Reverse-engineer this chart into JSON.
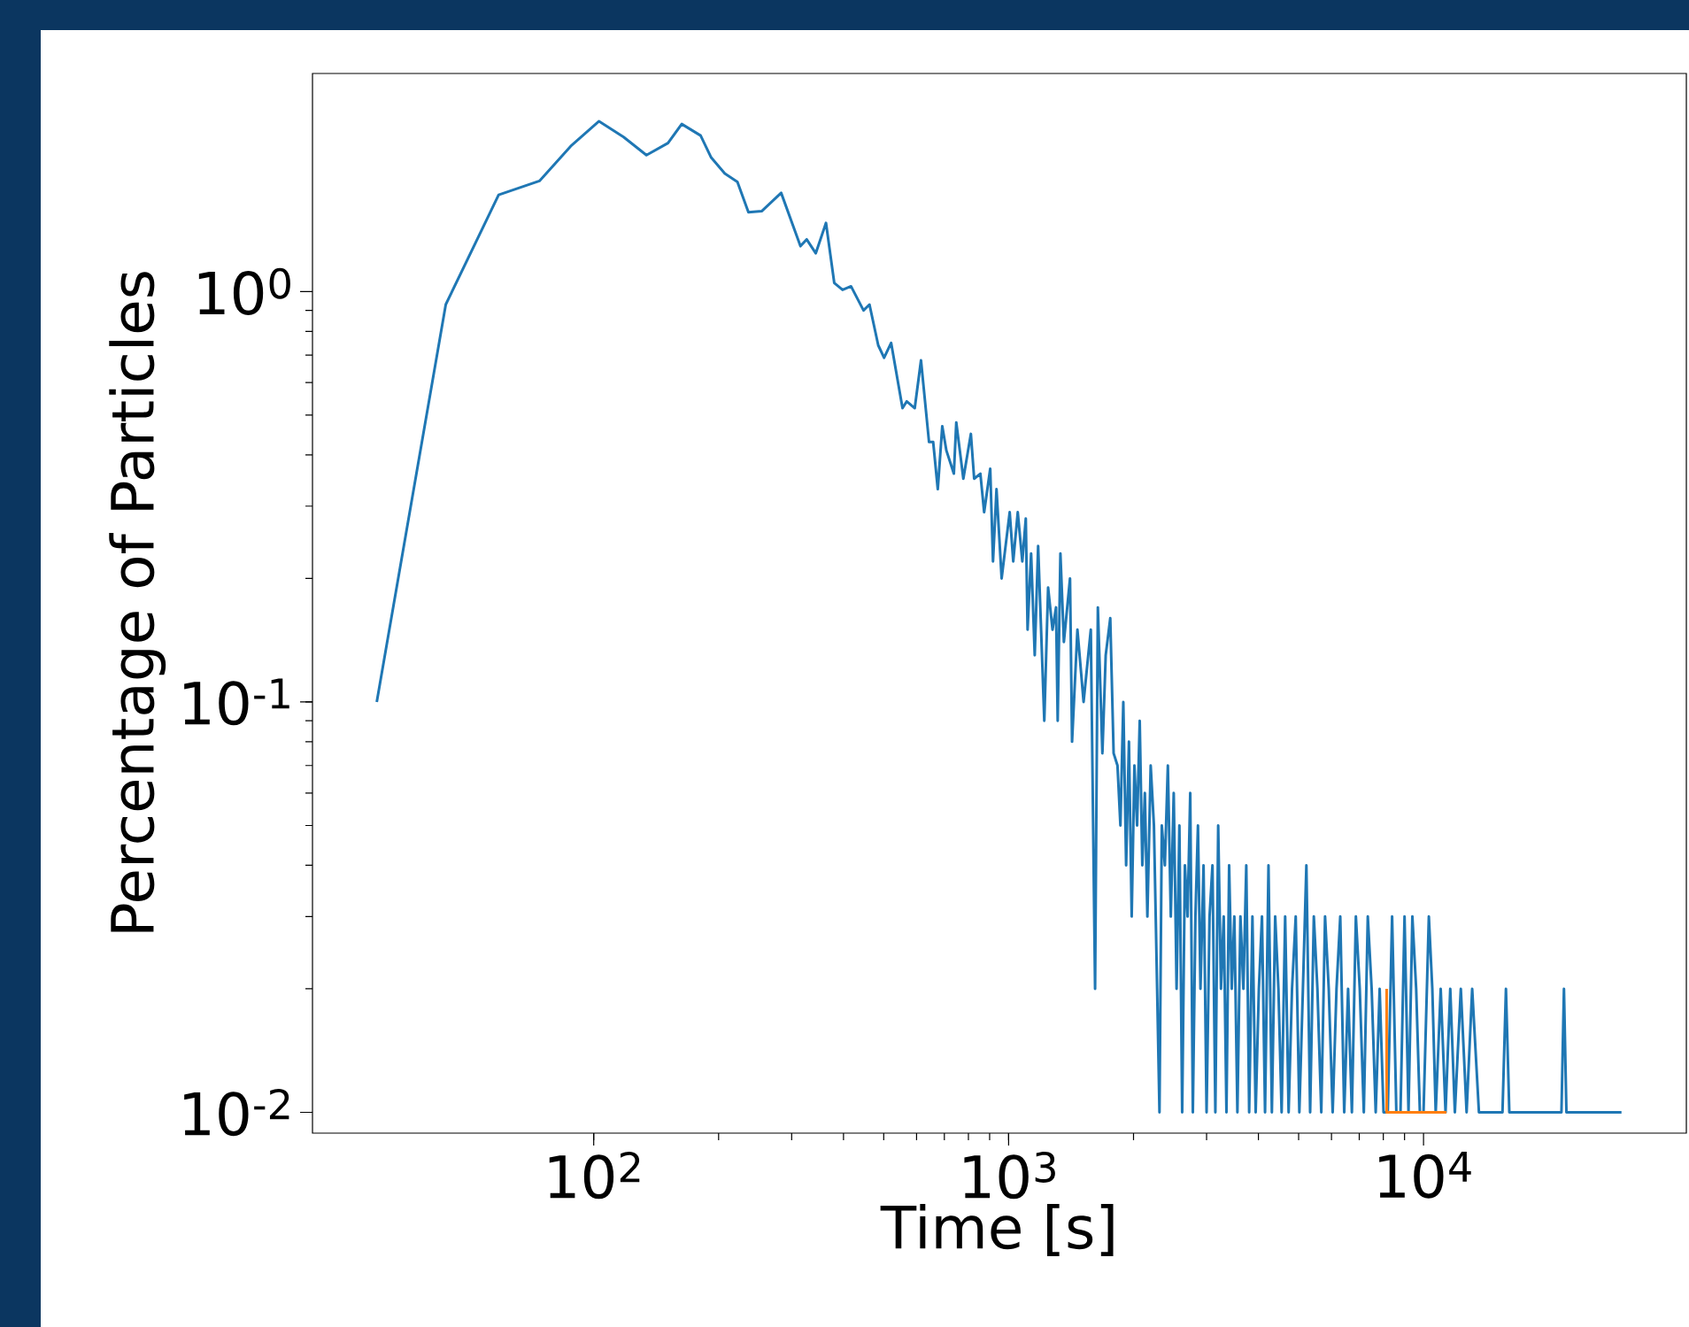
{
  "chart_data": {
    "type": "line",
    "xlabel": "Time [s]",
    "ylabel": "Percentage of Particles",
    "log": "xy",
    "xlim": [
      21,
      43000
    ],
    "ylim": [
      0.0089,
      3.4
    ],
    "xticks": [
      {
        "value": 100,
        "label": "10$^{2}$"
      },
      {
        "value": 1000,
        "label": "10$^{3}$"
      },
      {
        "value": 10000,
        "label": "10$^{4}$"
      }
    ],
    "yticks": [
      {
        "value": 0.01,
        "label": "10$^{-2}$"
      },
      {
        "value": 0.1,
        "label": "10$^{-1}$"
      },
      {
        "value": 1,
        "label": "10$^{0}$"
      }
    ],
    "series": [
      {
        "color": "#1f77b4",
        "x": [
          30,
          44,
          59,
          74,
          88,
          103,
          118,
          134,
          151,
          163,
          181,
          192,
          207,
          222,
          236,
          254,
          283,
          315,
          326,
          343,
          363,
          380,
          398,
          417,
          447,
          462,
          485,
          501,
          521,
          555,
          568,
          594,
          615,
          643,
          658,
          675,
          692,
          708,
          738,
          748,
          778,
          811,
          826,
          855,
          873,
          903,
          917,
          935,
          962,
          1006,
          1026,
          1052,
          1079,
          1100,
          1111,
          1133,
          1156,
          1178,
          1219,
          1245,
          1276,
          1301,
          1313,
          1333,
          1359,
          1406,
          1422,
          1465,
          1516,
          1578,
          1616,
          1641,
          1683,
          1714,
          1758,
          1791,
          1830,
          1860,
          1890,
          1920,
          1950,
          1980,
          2010,
          2040,
          2070,
          2100,
          2130,
          2160,
          2200,
          2240,
          2280,
          2310,
          2340,
          2380,
          2420,
          2460,
          2500,
          2540,
          2580,
          2620,
          2660,
          2700,
          2740,
          2780,
          2820,
          2860,
          2900,
          2950,
          3000,
          3050,
          3100,
          3150,
          3200,
          3250,
          3300,
          3350,
          3400,
          3450,
          3500,
          3560,
          3620,
          3680,
          3740,
          3800,
          3870,
          3940,
          4010,
          4080,
          4150,
          4230,
          4310,
          4390,
          4470,
          4550,
          4640,
          4730,
          4820,
          4920,
          5020,
          5120,
          5220,
          5330,
          5440,
          5550,
          5670,
          5790,
          5910,
          6040,
          6170,
          6300,
          6440,
          6580,
          6720,
          6870,
          7020,
          7180,
          7340,
          7500,
          7670,
          7840,
          8010,
          8200,
          8400,
          8600,
          8800,
          9000,
          9200,
          9400,
          9600,
          9800,
          10000,
          10300,
          10500,
          10700,
          11000,
          11300,
          11600,
          11900,
          12300,
          12700,
          13100,
          13600,
          15500,
          15800,
          16100,
          21500,
          21800,
          22100,
          30000
        ],
        "values": [
          0.1,
          0.93,
          1.72,
          1.86,
          2.26,
          2.6,
          2.38,
          2.15,
          2.3,
          2.56,
          2.4,
          2.12,
          1.94,
          1.85,
          1.56,
          1.57,
          1.74,
          1.29,
          1.34,
          1.24,
          1.47,
          1.05,
          1.01,
          1.03,
          0.9,
          0.93,
          0.74,
          0.69,
          0.75,
          0.52,
          0.54,
          0.52,
          0.68,
          0.43,
          0.43,
          0.33,
          0.47,
          0.41,
          0.36,
          0.48,
          0.35,
          0.45,
          0.35,
          0.36,
          0.29,
          0.37,
          0.22,
          0.33,
          0.2,
          0.29,
          0.22,
          0.29,
          0.22,
          0.28,
          0.15,
          0.23,
          0.13,
          0.24,
          0.09,
          0.19,
          0.15,
          0.17,
          0.09,
          0.23,
          0.14,
          0.2,
          0.08,
          0.15,
          0.1,
          0.15,
          0.02,
          0.17,
          0.075,
          0.13,
          0.16,
          0.075,
          0.07,
          0.05,
          0.1,
          0.04,
          0.08,
          0.03,
          0.07,
          0.05,
          0.09,
          0.04,
          0.06,
          0.03,
          0.07,
          0.05,
          0.02,
          0.01,
          0.05,
          0.04,
          0.07,
          0.03,
          0.06,
          0.02,
          0.05,
          0.01,
          0.04,
          0.03,
          0.06,
          0.01,
          0.03,
          0.05,
          0.02,
          0.04,
          0.01,
          0.03,
          0.04,
          0.01,
          0.05,
          0.02,
          0.03,
          0.01,
          0.04,
          0.02,
          0.03,
          0.01,
          0.03,
          0.02,
          0.04,
          0.01,
          0.03,
          0.01,
          0.02,
          0.03,
          0.01,
          0.04,
          0.01,
          0.03,
          0.02,
          0.01,
          0.03,
          0.01,
          0.02,
          0.03,
          0.01,
          0.02,
          0.04,
          0.01,
          0.03,
          0.02,
          0.01,
          0.03,
          0.02,
          0.01,
          0.02,
          0.03,
          0.01,
          0.02,
          0.01,
          0.03,
          0.02,
          0.01,
          0.03,
          0.02,
          0.01,
          0.02,
          0.01,
          0.01,
          0.03,
          0.01,
          0.01,
          0.03,
          0.01,
          0.03,
          0.02,
          0.01,
          0.01,
          0.03,
          0.02,
          0.01,
          0.02,
          0.01,
          0.02,
          0.01,
          0.02,
          0.01,
          0.02,
          0.01,
          0.01,
          0.02,
          0.01,
          0.01,
          0.02,
          0.01,
          0.01
        ]
      },
      {
        "color": "#ff7f0e",
        "x": [
          8150,
          8150,
          11350
        ],
        "values": [
          0.02,
          0.01,
          0.01
        ]
      }
    ]
  }
}
